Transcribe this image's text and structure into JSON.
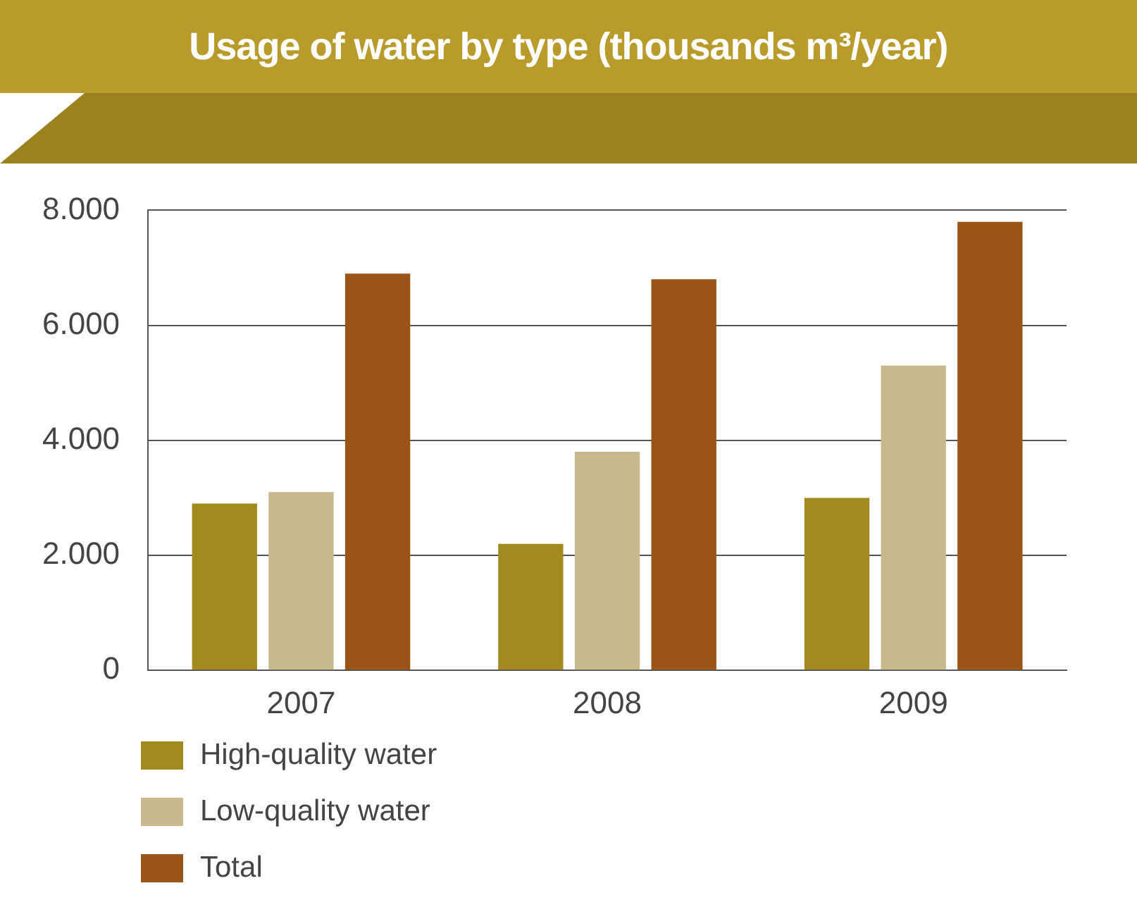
{
  "chart_data": {
    "type": "bar",
    "title": "Usage of water by type (thousands m³/year)",
    "categories": [
      "2007",
      "2008",
      "2009"
    ],
    "series": [
      {
        "name": "High-quality water",
        "color": "#a38a1e",
        "values": [
          2900,
          2200,
          3000
        ]
      },
      {
        "name": "Low-quality water",
        "color": "#c8b98c",
        "values": [
          3100,
          3800,
          5300
        ]
      },
      {
        "name": "Total",
        "color": "#9a5416",
        "values": [
          6900,
          6800,
          7800
        ]
      }
    ],
    "ylim": [
      0,
      8000
    ],
    "yticks": [
      {
        "value": 0,
        "label": "0"
      },
      {
        "value": 2000,
        "label": "2.000"
      },
      {
        "value": 4000,
        "label": "4.000"
      },
      {
        "value": 6000,
        "label": "6.000"
      },
      {
        "value": 8000,
        "label": "8.000"
      }
    ],
    "grid": "y",
    "legend": "bottom"
  }
}
